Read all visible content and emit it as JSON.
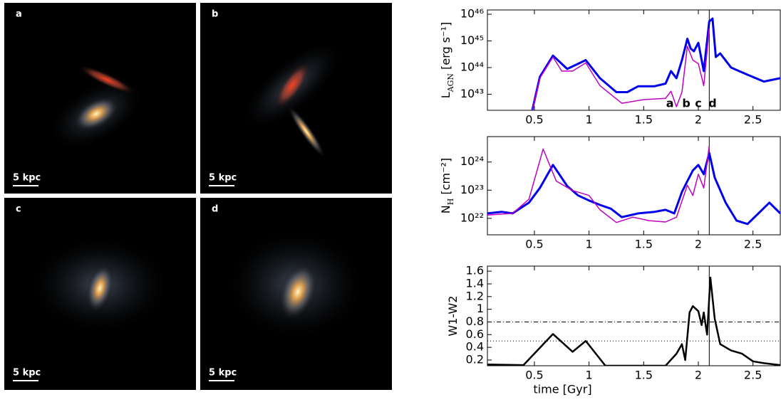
{
  "panels": [
    {
      "label": "a",
      "scale": "5 kpc"
    },
    {
      "label": "b",
      "scale": "5 kpc"
    },
    {
      "label": "c",
      "scale": "5 kpc"
    },
    {
      "label": "d",
      "scale": "5 kpc"
    }
  ],
  "chart_data": [
    {
      "type": "line",
      "log_y": true,
      "ylabel": [
        "L",
        "AGN",
        " [erg s⁻¹]"
      ],
      "xlim": [
        0.07,
        2.75
      ],
      "xticks": [
        0.5,
        1.0,
        1.5,
        2.0,
        2.5
      ],
      "ylim": [
        2.5e+42,
        1.45e+46
      ],
      "yticks": [
        {
          "value": 1e+43,
          "label": "10⁴³"
        },
        {
          "value": 1e+44,
          "label": "10⁴⁴"
        },
        {
          "value": 1e+45,
          "label": "10⁴⁵"
        },
        {
          "value": 1e+46,
          "label": "10⁴⁶"
        }
      ],
      "vline": 2.1,
      "annotations": [
        {
          "text": "a",
          "x": 1.74
        },
        {
          "text": "b",
          "x": 1.89
        },
        {
          "text": "c",
          "x": 2.0
        },
        {
          "text": "d",
          "x": 2.13
        }
      ],
      "series": [
        {
          "color": "#0000ee",
          "width": 3,
          "x": [
            0.48,
            0.55,
            0.67,
            0.8,
            0.97,
            1.1,
            1.25,
            1.35,
            1.45,
            1.6,
            1.7,
            1.75,
            1.8,
            1.85,
            1.9,
            1.93,
            1.96,
            2.0,
            2.05,
            2.1,
            2.13,
            2.16,
            2.2,
            2.3,
            2.45,
            2.6,
            2.75
          ],
          "values": [
            2.5e+42,
            4.5e+43,
            2.8e+44,
            8.9e+43,
            1.9e+44,
            4e+43,
            1.2e+43,
            1.2e+43,
            2e+43,
            2e+43,
            2.5e+43,
            7.4e+43,
            4e+43,
            1.9e+44,
            1.2e+45,
            5.2e+44,
            4.1e+44,
            8.5e+44,
            7.4e+43,
            5.4e+45,
            6.9e+45,
            2.5e+44,
            3.4e+44,
            1e+44,
            5.4e+43,
            3e+43,
            4e+43
          ]
        },
        {
          "color": "#c000c0",
          "width": 1.5,
          "x": [
            0.48,
            0.55,
            0.67,
            0.75,
            0.85,
            0.97,
            1.1,
            1.3,
            1.5,
            1.7,
            1.75,
            1.8,
            1.85,
            1.9,
            1.95,
            2.0,
            2.05,
            2.1
          ],
          "values": [
            2.5e+42,
            4e+43,
            2.5e+44,
            7.4e+43,
            7.4e+43,
            1.5e+44,
            2.1e+43,
            4.6e+42,
            6.3e+42,
            7e+42,
            1.3e+43,
            3.4e+42,
            1.2e+43,
            6.3e+44,
            1.9e+44,
            1.4e+44,
            2.1e+43,
            2.9e+45
          ]
        }
      ]
    },
    {
      "type": "line",
      "log_y": true,
      "ylabel": [
        "N",
        "H",
        " [cm⁻²]"
      ],
      "xlim": [
        0.07,
        2.75
      ],
      "xticks": [
        0.5,
        1.0,
        1.5,
        2.0,
        2.5
      ],
      "ylim": [
        2.6e+21,
        8e+24
      ],
      "yticks": [
        {
          "value": 1e+22,
          "label": "10²²"
        },
        {
          "value": 1e+23,
          "label": "10²³"
        },
        {
          "value": 1e+24,
          "label": "10²⁴"
        }
      ],
      "vline": 2.1,
      "series": [
        {
          "color": "#0000ee",
          "width": 3,
          "x": [
            0.07,
            0.2,
            0.3,
            0.45,
            0.55,
            0.67,
            0.8,
            0.9,
            1.0,
            1.1,
            1.2,
            1.3,
            1.45,
            1.6,
            1.7,
            1.78,
            1.85,
            1.9,
            1.95,
            2.0,
            2.05,
            2.1,
            2.15,
            2.25,
            2.35,
            2.45,
            2.55,
            2.65,
            2.75
          ],
          "values": [
            1.5e+22,
            1.7e+22,
            1.5e+22,
            3.6e+22,
            1.2e+23,
            7.9e+23,
            1.4e+23,
            6.5e+22,
            4.3e+22,
            3e+22,
            2.2e+22,
            1.1e+22,
            1.5e+22,
            1.7e+22,
            2e+22,
            1.5e+22,
            8.7e+22,
            2.1e+23,
            5e+23,
            7.9e+23,
            3.7e+23,
            2.1e+24,
            2.8e+23,
            3.6e+22,
            8.3e+21,
            6.3e+21,
            1.5e+22,
            3.6e+22,
            1.5e+22
          ]
        },
        {
          "color": "#c000c0",
          "width": 1.5,
          "x": [
            0.07,
            0.3,
            0.45,
            0.58,
            0.7,
            0.85,
            1.0,
            1.1,
            1.25,
            1.4,
            1.55,
            1.7,
            1.8,
            1.9,
            1.95,
            2.0,
            2.05,
            2.1
          ],
          "values": [
            1.3e+22,
            1.5e+22,
            4.8e+22,
            2.9e+24,
            2.1e+23,
            9.7e+22,
            6.5e+22,
            2e+22,
            7.1e+21,
            1.1e+22,
            8.3e+21,
            7.4e+21,
            1.1e+22,
            1.5e+23,
            6.5e+22,
            3.7e+23,
            1.2e+23,
            3.8e+24
          ]
        }
      ]
    },
    {
      "type": "line",
      "log_y": false,
      "ylabel": [
        "W1-W2"
      ],
      "xlabel": "time [Gyr]",
      "xlim": [
        0.07,
        2.75
      ],
      "xticks": [
        0.5,
        1.0,
        1.5,
        2.0,
        2.5
      ],
      "ylim": [
        0.11,
        1.68
      ],
      "yticks": [
        0.2,
        0.4,
        0.6,
        0.8,
        1.0,
        1.2,
        1.4,
        1.6
      ],
      "vline": 2.1,
      "hlines": [
        0.8,
        0.5
      ],
      "series": [
        {
          "color": "#000000",
          "width": 2.5,
          "x": [
            0.07,
            0.4,
            0.67,
            0.85,
            0.97,
            1.15,
            1.7,
            1.8,
            1.85,
            1.88,
            1.92,
            1.95,
            2.0,
            2.03,
            2.05,
            2.08,
            2.11,
            2.15,
            2.2,
            2.3,
            2.4,
            2.5,
            2.6,
            2.75
          ],
          "values": [
            0.13,
            0.12,
            0.61,
            0.33,
            0.5,
            0.11,
            0.11,
            0.3,
            0.45,
            0.2,
            0.95,
            1.05,
            0.97,
            0.75,
            0.95,
            0.6,
            1.5,
            0.85,
            0.45,
            0.35,
            0.3,
            0.18,
            0.15,
            0.12
          ]
        }
      ]
    }
  ]
}
